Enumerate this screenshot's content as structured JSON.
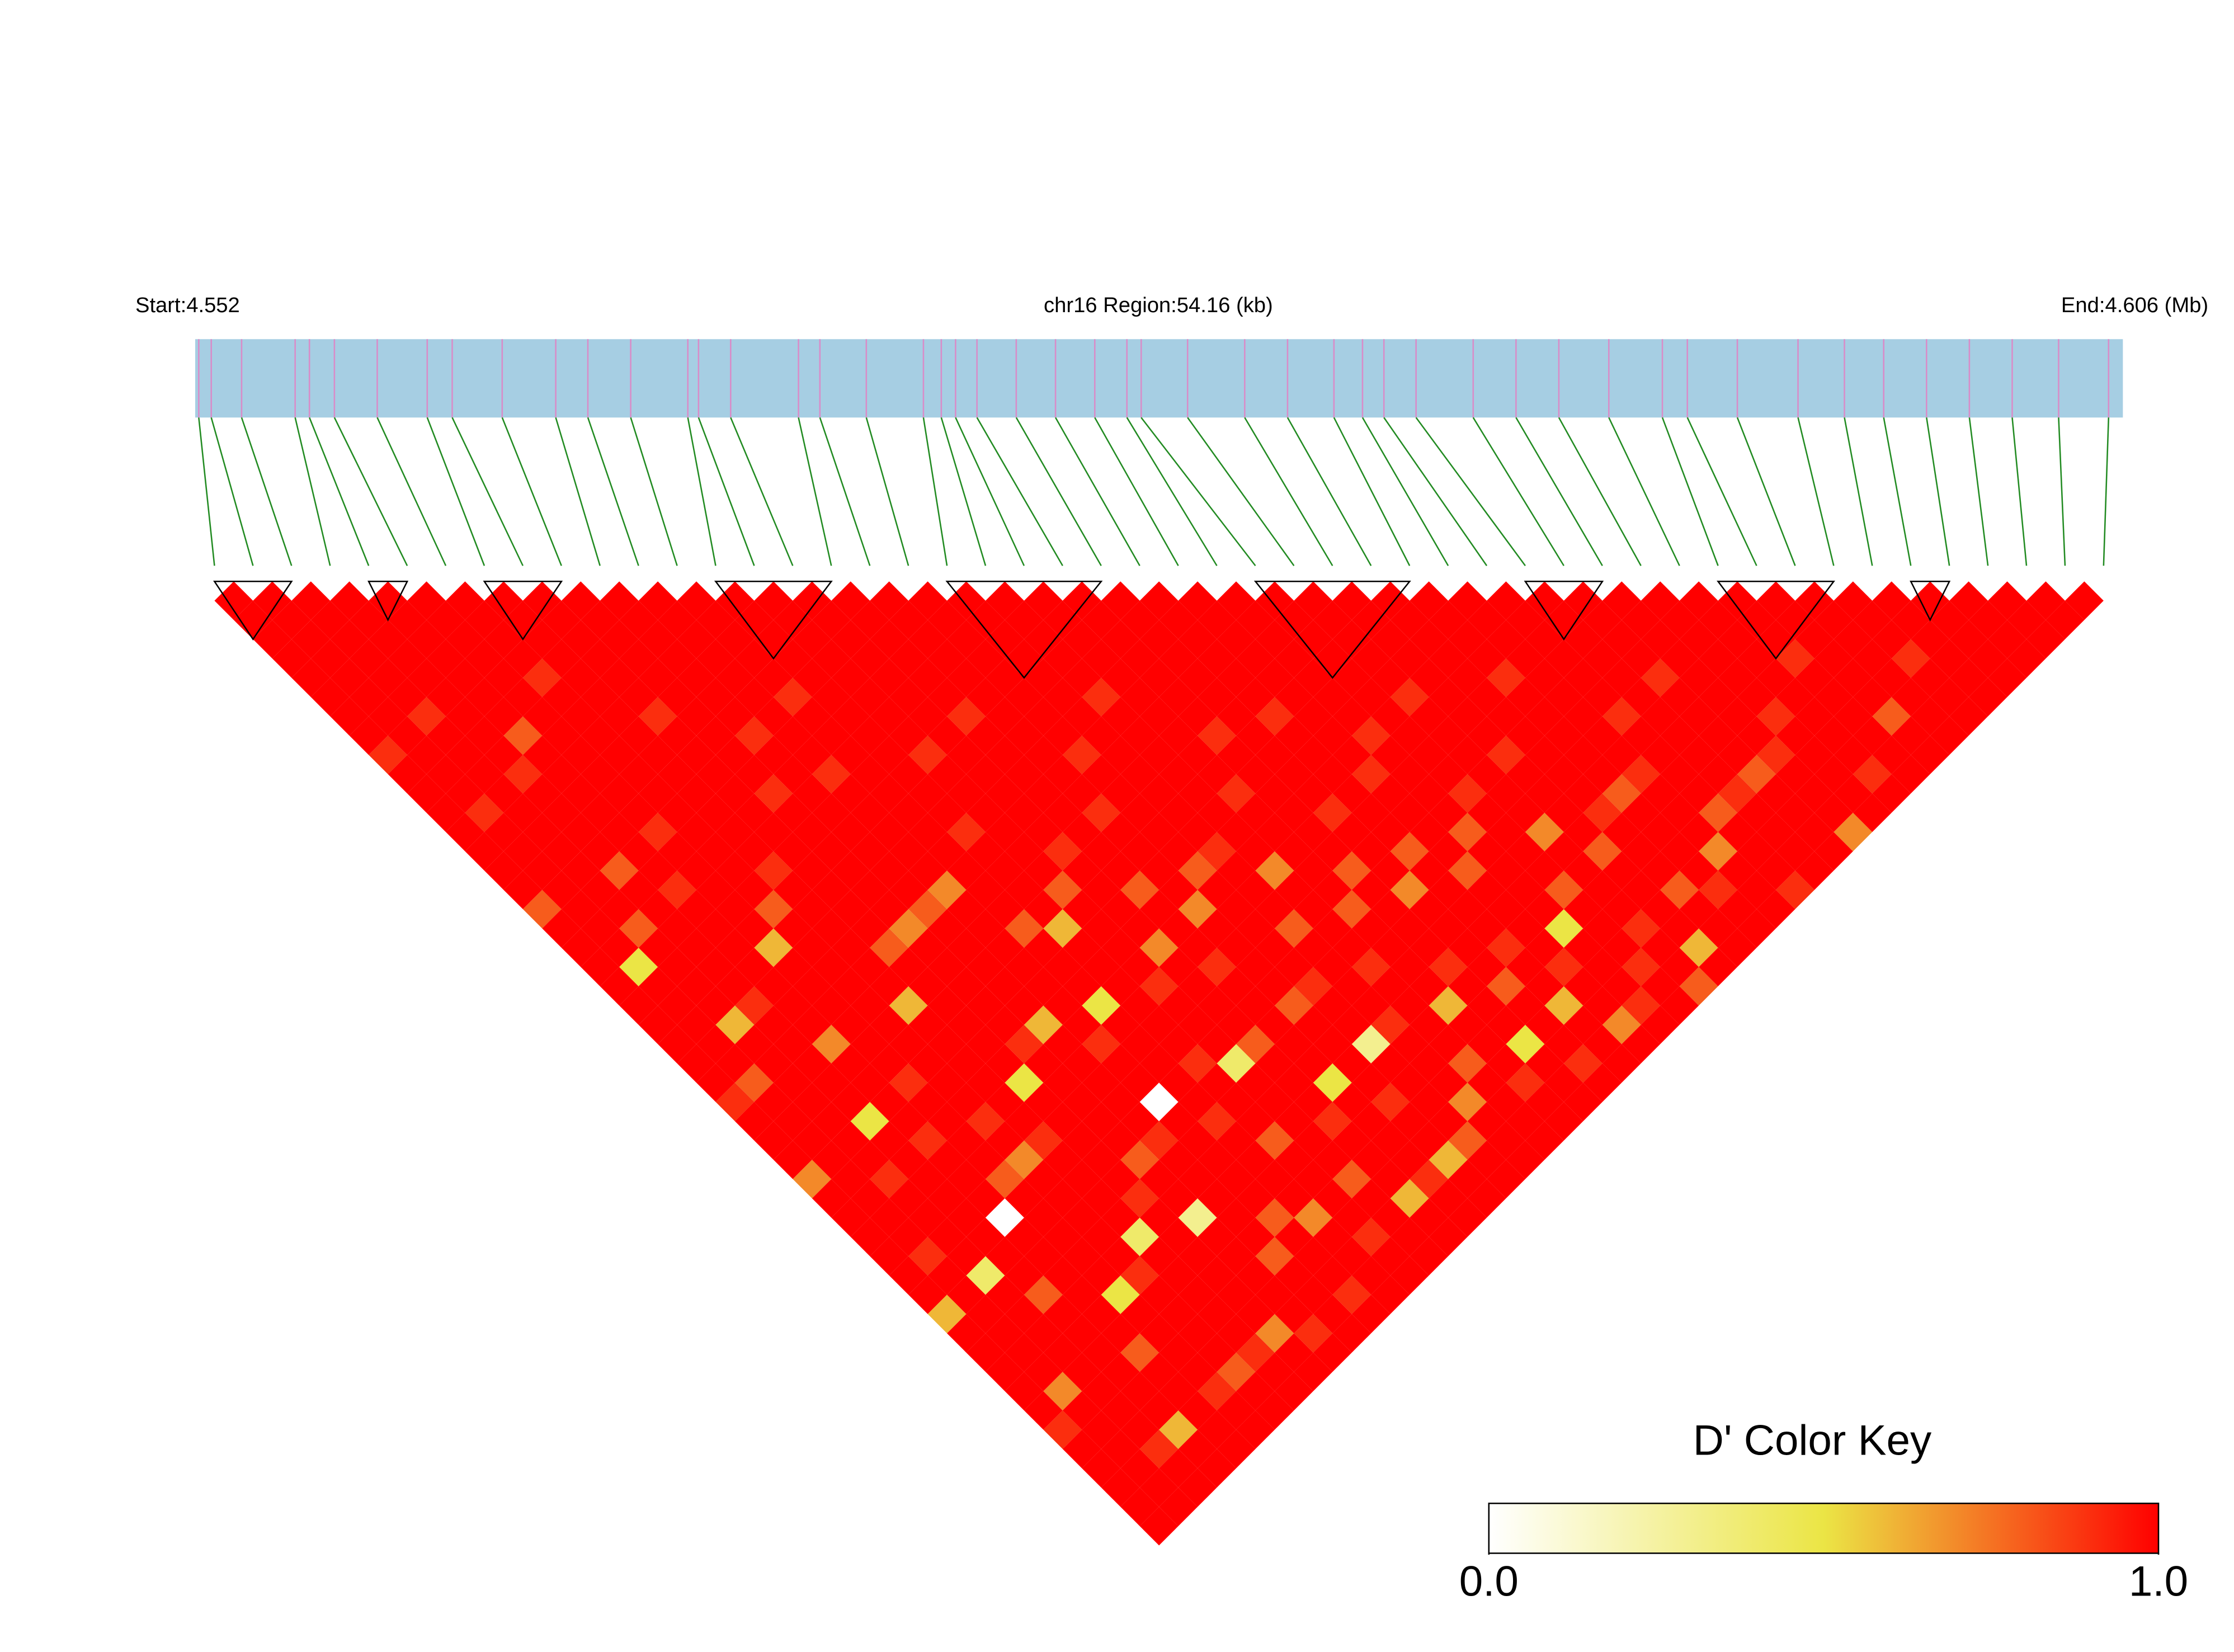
{
  "chart_data": {
    "type": "ld_heatmap",
    "start_label": "Start:4.552",
    "region_label": "chr16 Region:54.16 (kb)",
    "end_label": "End:4.606 (Mb)",
    "xlim": [
      4.552,
      4.606
    ],
    "bar_color": "#a6cee3",
    "snp_color": "#d98cc8",
    "link_color": "#228b22",
    "block_color": "#000000",
    "positions": [
      4.5521,
      4.55245,
      4.5533,
      4.5548,
      4.5552,
      4.5559,
      4.5571,
      4.5585,
      4.5592,
      4.5606,
      4.5621,
      4.563,
      4.5642,
      4.5658,
      4.5661,
      4.567,
      4.5689,
      4.5695,
      4.5708,
      4.5724,
      4.5729,
      4.5733,
      4.5739,
      4.575,
      4.5761,
      4.5772,
      4.5781,
      4.5785,
      4.5798,
      4.5814,
      4.5826,
      4.5839,
      4.5847,
      4.5853,
      4.5862,
      4.5878,
      4.589,
      4.5902,
      4.5916,
      4.5931,
      4.5938,
      4.5952,
      4.5969,
      4.5982,
      4.5993,
      4.6005,
      4.6017,
      4.6029,
      4.6042,
      4.6056
    ],
    "blocks": [
      [
        0,
        2
      ],
      [
        4,
        5
      ],
      [
        7,
        9
      ],
      [
        13,
        16
      ],
      [
        19,
        23
      ],
      [
        27,
        31
      ],
      [
        34,
        36
      ],
      [
        39,
        42
      ],
      [
        44,
        45
      ]
    ],
    "ld": [
      [
        1,
        1,
        1,
        1,
        1,
        1,
        1,
        1,
        0.9,
        1,
        1,
        1,
        1,
        1,
        1,
        1,
        0.8,
        1,
        1,
        1,
        1,
        1,
        1,
        1,
        1,
        1,
        0.9,
        1,
        1,
        1,
        0.7,
        1,
        1,
        1,
        1,
        1,
        1,
        0.6,
        1,
        1,
        1,
        1,
        1,
        0.9,
        1,
        1,
        1,
        1,
        1
      ],
      [
        1,
        1,
        1,
        1,
        1,
        1,
        1,
        1,
        1,
        1,
        1,
        0.9,
        1,
        1,
        1,
        1,
        1,
        1,
        1,
        0.5,
        1,
        1,
        1,
        1,
        1,
        0.8,
        1,
        1,
        1,
        1,
        1,
        1,
        1,
        1,
        0.9,
        1,
        1,
        1,
        1,
        1,
        1,
        0.7,
        1,
        1,
        1,
        1,
        1,
        1
      ],
      [
        1,
        1,
        1,
        1,
        1,
        1,
        0.9,
        1,
        1,
        1,
        1,
        1,
        1,
        1,
        1,
        1,
        1,
        0.8,
        1,
        1,
        1,
        1,
        0.6,
        1,
        1,
        1,
        1,
        1,
        1,
        1,
        0.9,
        1,
        1,
        1,
        1,
        0.4,
        1,
        1,
        1,
        1,
        1,
        1,
        1,
        1,
        0.9,
        1,
        1
      ],
      [
        1,
        1,
        1,
        1,
        1,
        1,
        1,
        1,
        1,
        0.9,
        1,
        1,
        1,
        1,
        0.8,
        1,
        1,
        1,
        1,
        1,
        1,
        0.9,
        1,
        1,
        1,
        1,
        1,
        0.5,
        1,
        1,
        1,
        1,
        1,
        1,
        1,
        1,
        0.8,
        1,
        1,
        1,
        1,
        1,
        1,
        0.6,
        1,
        1
      ],
      [
        1,
        1,
        1,
        1,
        1,
        1,
        1,
        0.8,
        1,
        1,
        1,
        1,
        1,
        1,
        1,
        0.9,
        1,
        1,
        1,
        1,
        1,
        1,
        1,
        0.7,
        1,
        1,
        1,
        1,
        0.9,
        1,
        1,
        1,
        0,
        1,
        1,
        1,
        1,
        1,
        1,
        0.8,
        1,
        1,
        1,
        1,
        1
      ],
      [
        1,
        1,
        1,
        1,
        1,
        1,
        1,
        1,
        1,
        1,
        1,
        1,
        0.9,
        1,
        1,
        1,
        1,
        1,
        0.6,
        1,
        1,
        1,
        1,
        1,
        1,
        0.9,
        1,
        1,
        1,
        1,
        0.8,
        1,
        1,
        1,
        1,
        1,
        0.5,
        1,
        1,
        1,
        1,
        0.9,
        1,
        1
      ],
      [
        1,
        1,
        1,
        1,
        0.9,
        1,
        1,
        1,
        1,
        1,
        1,
        1,
        1,
        1,
        1,
        1,
        0.8,
        1,
        1,
        1,
        1,
        1,
        1,
        1,
        1,
        1,
        1,
        0.9,
        1,
        0.7,
        1,
        1,
        1,
        1,
        1,
        0.9,
        1,
        1,
        1,
        1,
        0.8,
        1,
        1
      ],
      [
        1,
        1,
        1,
        1,
        1,
        1,
        1,
        1,
        1,
        1,
        1,
        1,
        1,
        1,
        0.9,
        1,
        1,
        1,
        1,
        1,
        1,
        0.6,
        1,
        1,
        1,
        1,
        1,
        1,
        0.9,
        1,
        1,
        1,
        1,
        0.4,
        1,
        1,
        1,
        1,
        1,
        0.9,
        1,
        1
      ],
      [
        1,
        1,
        1,
        1,
        1,
        1,
        0.9,
        1,
        1,
        1,
        1,
        1,
        1,
        1,
        1,
        1,
        1,
        1,
        0.8,
        1,
        1,
        1,
        1,
        1,
        1,
        0.5,
        1,
        1,
        1,
        1,
        1,
        0.9,
        1,
        1,
        1,
        1,
        1,
        1,
        0.7,
        1,
        1
      ],
      [
        1,
        1,
        1,
        1,
        1,
        1,
        1,
        1,
        1,
        1,
        0.9,
        1,
        1,
        1,
        1,
        1,
        1,
        0.7,
        1,
        1,
        1,
        1,
        1,
        0.9,
        1,
        1,
        1,
        1,
        1,
        0.8,
        1,
        1,
        0.3,
        1,
        1,
        1,
        1,
        1,
        0.9,
        1
      ],
      [
        1,
        1,
        1,
        1,
        1,
        1,
        1,
        0.9,
        1,
        1,
        1,
        1,
        1,
        1,
        1,
        1,
        0.8,
        1,
        1,
        1,
        1,
        1,
        0.6,
        1,
        1,
        1,
        1,
        1,
        0.9,
        1,
        1,
        1,
        1,
        1,
        0.8,
        1,
        1,
        1,
        1
      ],
      [
        1,
        1,
        1,
        1,
        1,
        1,
        1,
        1,
        1,
        0.9,
        1,
        1,
        1,
        1,
        1,
        0.7,
        1,
        1,
        1,
        1,
        1,
        1,
        1,
        0.9,
        1,
        1,
        0,
        1,
        1,
        1,
        1,
        1,
        0.8,
        1,
        1,
        1,
        0.9,
        1
      ],
      [
        1,
        1,
        1,
        1,
        1,
        0.9,
        1,
        1,
        1,
        1,
        1,
        1,
        1,
        1,
        1,
        1,
        1,
        0.8,
        1,
        1,
        1,
        0.5,
        1,
        1,
        1,
        1,
        1,
        0.9,
        1,
        1,
        1,
        1,
        0.7,
        1,
        1,
        1,
        1
      ],
      [
        1,
        1,
        1,
        1,
        1,
        1,
        1,
        1,
        1,
        1,
        1,
        1,
        0.9,
        1,
        1,
        1,
        1,
        0.6,
        1,
        1,
        1,
        1,
        1,
        1,
        0.9,
        1,
        1,
        1,
        0.8,
        1,
        1,
        1,
        1,
        0.9,
        1,
        1
      ],
      [
        1,
        1,
        1,
        1,
        1,
        1,
        1,
        1,
        0.9,
        1,
        1,
        1,
        1,
        1,
        1,
        0.8,
        1,
        1,
        1,
        1,
        0.9,
        1,
        1,
        1,
        0.4,
        1,
        1,
        1,
        1,
        1,
        0.8,
        1,
        1,
        1,
        1
      ],
      [
        1,
        1,
        1,
        1,
        1,
        1,
        1,
        1,
        1,
        1,
        1,
        1,
        1,
        0.9,
        1,
        1,
        1,
        1,
        0.7,
        1,
        1,
        1,
        1,
        0.8,
        1,
        1,
        1,
        0.9,
        1,
        1,
        1,
        0.6,
        1,
        1
      ],
      [
        1,
        1,
        1,
        1,
        1,
        1,
        0.9,
        1,
        1,
        1,
        1,
        1,
        1,
        1,
        1,
        0.8,
        1,
        1,
        1,
        0.9,
        1,
        1,
        1,
        1,
        1,
        0.5,
        1,
        1,
        1,
        1,
        0.9,
        1,
        1
      ],
      [
        1,
        1,
        1,
        1,
        1,
        1,
        1,
        1,
        1,
        1,
        1,
        0.9,
        1,
        1,
        1,
        1,
        0.7,
        1,
        1,
        1,
        1,
        0.8,
        1,
        1,
        1,
        1,
        0.9,
        1,
        1,
        0.6,
        1,
        1
      ],
      [
        1,
        1,
        1,
        1,
        1,
        1,
        1,
        1,
        0.9,
        1,
        1,
        1,
        1,
        1,
        0.8,
        1,
        1,
        1,
        1,
        1,
        0.9,
        1,
        1,
        0.3,
        1,
        1,
        1,
        1,
        0.8,
        1,
        1
      ],
      [
        1,
        1,
        1,
        1,
        1,
        1,
        1,
        1,
        1,
        1,
        1,
        1,
        1,
        0.9,
        1,
        1,
        1,
        0.8,
        1,
        1,
        1,
        1,
        0.9,
        1,
        1,
        1,
        0.7,
        1,
        1,
        1
      ],
      [
        1,
        1,
        1,
        1,
        1,
        0.9,
        1,
        1,
        1,
        1,
        1,
        1,
        1,
        1,
        0.7,
        1,
        1,
        1,
        1,
        0.9,
        1,
        1,
        1,
        1,
        0.8,
        1,
        1,
        1,
        1
      ],
      [
        1,
        1,
        1,
        1,
        1,
        1,
        1,
        1,
        1,
        1,
        0.9,
        1,
        1,
        1,
        1,
        1,
        0.8,
        1,
        1,
        1,
        1,
        0.6,
        1,
        1,
        1,
        0.9,
        1,
        1
      ],
      [
        1,
        1,
        1,
        1,
        1,
        1,
        1,
        0.9,
        1,
        1,
        1,
        1,
        1,
        1,
        0.8,
        1,
        1,
        1,
        1,
        0.9,
        1,
        1,
        1,
        0.5,
        1,
        1,
        1
      ],
      [
        1,
        1,
        1,
        1,
        1,
        1,
        1,
        1,
        1,
        1,
        1,
        0.9,
        1,
        1,
        1,
        0.7,
        1,
        1,
        1,
        1,
        0.8,
        1,
        1,
        1,
        0.9,
        1
      ],
      [
        1,
        1,
        1,
        1,
        1,
        1,
        0.9,
        1,
        1,
        1,
        1,
        1,
        1,
        0.8,
        1,
        1,
        1,
        1,
        0.9,
        1,
        1,
        0.6,
        1,
        1,
        1
      ],
      [
        1,
        1,
        1,
        1,
        1,
        1,
        1,
        1,
        1,
        0.9,
        1,
        1,
        1,
        1,
        0.8,
        1,
        1,
        1,
        1,
        0.9,
        1,
        1,
        0.7,
        1
      ],
      [
        1,
        1,
        1,
        1,
        1,
        1,
        1,
        0.9,
        1,
        1,
        1,
        1,
        0.8,
        1,
        1,
        1,
        1,
        0.5,
        1,
        1,
        1,
        0.9,
        1
      ],
      [
        1,
        1,
        1,
        1,
        1,
        1,
        1,
        1,
        1,
        1,
        0.9,
        1,
        1,
        1,
        1,
        0.8,
        1,
        1,
        1,
        0.9,
        1,
        1
      ],
      [
        1,
        1,
        1,
        1,
        1,
        0.9,
        1,
        1,
        1,
        1,
        1,
        1,
        0.7,
        1,
        1,
        1,
        1,
        0.9,
        1,
        1,
        0.8
      ],
      [
        1,
        1,
        1,
        1,
        1,
        1,
        1,
        1,
        0.9,
        1,
        1,
        1,
        1,
        0.8,
        1,
        1,
        1,
        1,
        0.6,
        1
      ],
      [
        1,
        1,
        1,
        1,
        1,
        1,
        1,
        1,
        1,
        1,
        1,
        0.9,
        1,
        1,
        1,
        0.8,
        1,
        1,
        1
      ],
      [
        1,
        1,
        1,
        1,
        0.9,
        1,
        1,
        1,
        1,
        1,
        0.8,
        1,
        1,
        1,
        1,
        0.9,
        1,
        1
      ],
      [
        1,
        1,
        1,
        1,
        1,
        1,
        1,
        1,
        1,
        0.9,
        1,
        1,
        1,
        0.7,
        1,
        1,
        1
      ],
      [
        1,
        1,
        1,
        1,
        1,
        1,
        0.9,
        1,
        1,
        1,
        1,
        0.8,
        1,
        1,
        1,
        0.9
      ],
      [
        1,
        1,
        1,
        1,
        1,
        1,
        1,
        1,
        1,
        1,
        0.9,
        1,
        1,
        1,
        1
      ],
      [
        1,
        1,
        1,
        1,
        0.9,
        1,
        1,
        1,
        1,
        0.8,
        1,
        1,
        1,
        1
      ],
      [
        1,
        1,
        1,
        1,
        1,
        1,
        1,
        1,
        0.9,
        1,
        1,
        1,
        0.7
      ],
      [
        1,
        1,
        1,
        1,
        1,
        1,
        0.9,
        1,
        1,
        1,
        1,
        1
      ],
      [
        1,
        1,
        1,
        1,
        1,
        1,
        1,
        1,
        1,
        0.9,
        1
      ],
      [
        1,
        1,
        1,
        0.9,
        1,
        1,
        1,
        1,
        1,
        1
      ],
      [
        1,
        1,
        1,
        1,
        1,
        1,
        0.8,
        1,
        1
      ],
      [
        1,
        1,
        1,
        1,
        1,
        1,
        1,
        1
      ],
      [
        1,
        1,
        1,
        0.9,
        1,
        1,
        1
      ],
      [
        1,
        1,
        1,
        1,
        1,
        1
      ],
      [
        1,
        1,
        1,
        1,
        1
      ],
      [
        1,
        1,
        1,
        1
      ],
      [
        1,
        1,
        1
      ],
      [
        1,
        1
      ],
      [
        1
      ]
    ],
    "colorkey_title": "D' Color Key",
    "colorscale": [
      {
        "value": 0,
        "color": "#ffffff"
      },
      {
        "value": 0.5,
        "color": "#ebe545"
      },
      {
        "value": 1,
        "color": "#ff0000"
      }
    ],
    "key_ticks": [
      {
        "value": 0,
        "label": "0.0"
      },
      {
        "value": 1,
        "label": "1.0"
      }
    ]
  }
}
